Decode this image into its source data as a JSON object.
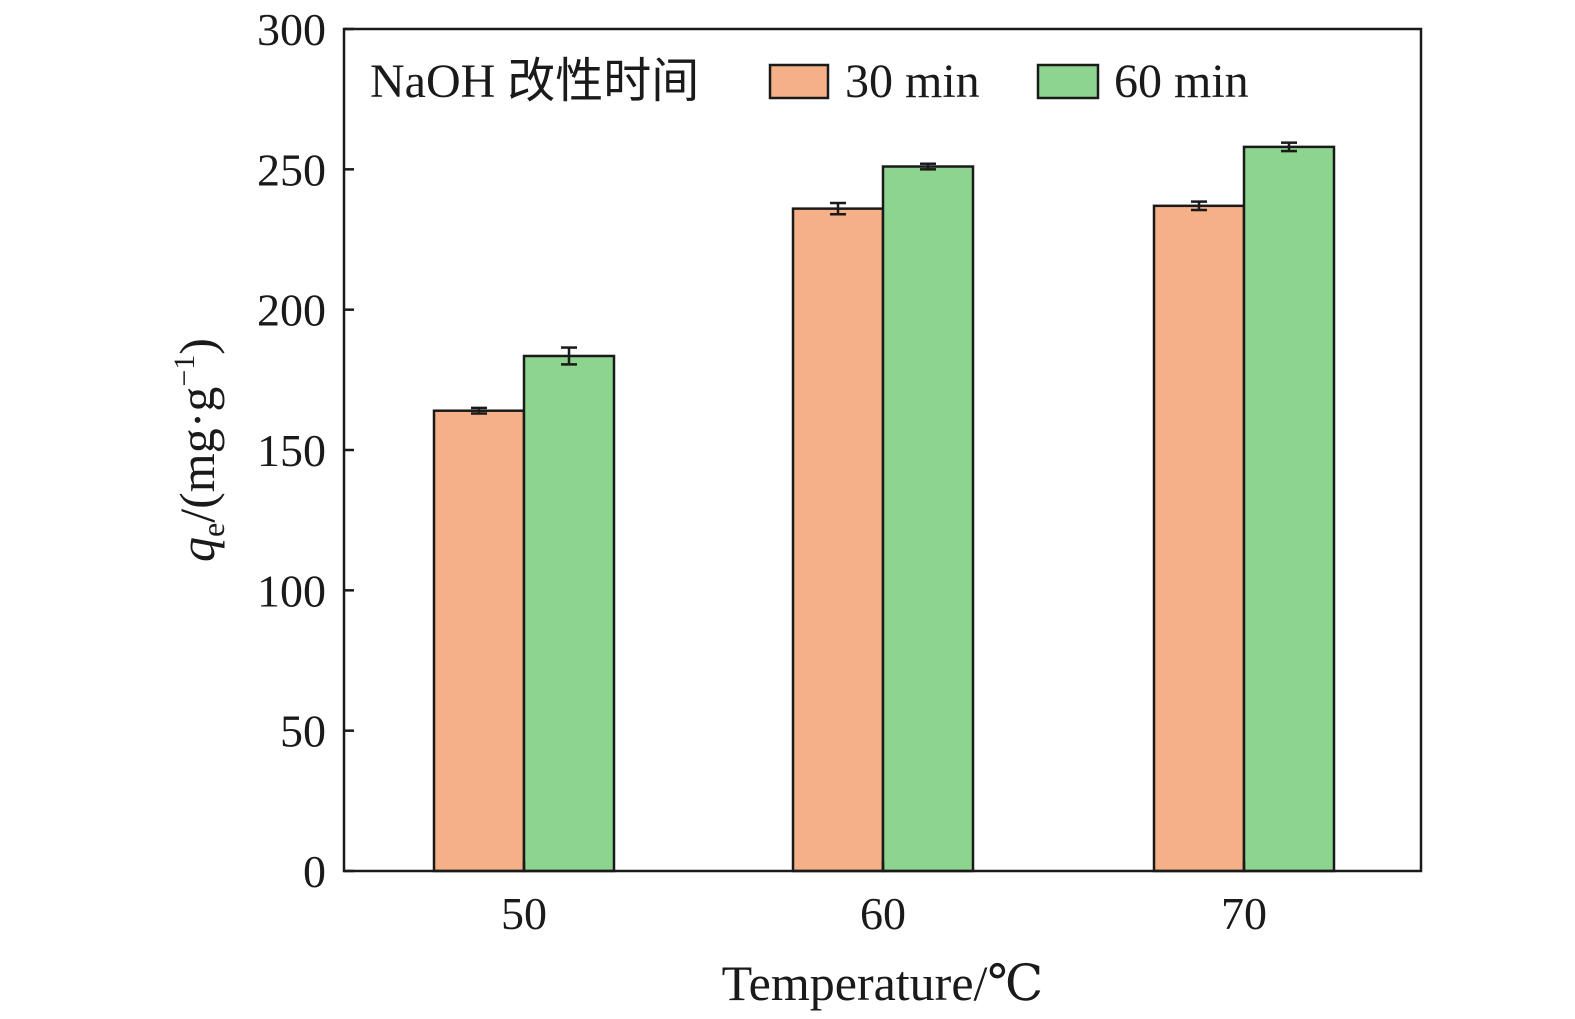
{
  "chart_data": {
    "type": "bar",
    "categories": [
      "50",
      "60",
      "70"
    ],
    "series": [
      {
        "name": "30 min",
        "values": [
          164,
          236,
          237
        ],
        "errors": [
          1,
          2,
          1.5
        ],
        "color": "#f5b088"
      },
      {
        "name": "60 min",
        "values": [
          183.5,
          251,
          258
        ],
        "errors": [
          3,
          1,
          1.5
        ],
        "color": "#8dd48e"
      }
    ],
    "xlabel": "Temperature/℃",
    "ylabel": {
      "q": "q",
      "sub": "e",
      "unit": "/(mg·g",
      "sup": "−1",
      "close": ")"
    },
    "ylim": [
      0,
      300
    ],
    "yticks": [
      0,
      50,
      100,
      150,
      200,
      250,
      300
    ],
    "legend": {
      "title": "NaOH 改性时间",
      "placement": "top-left"
    },
    "grid": false
  }
}
